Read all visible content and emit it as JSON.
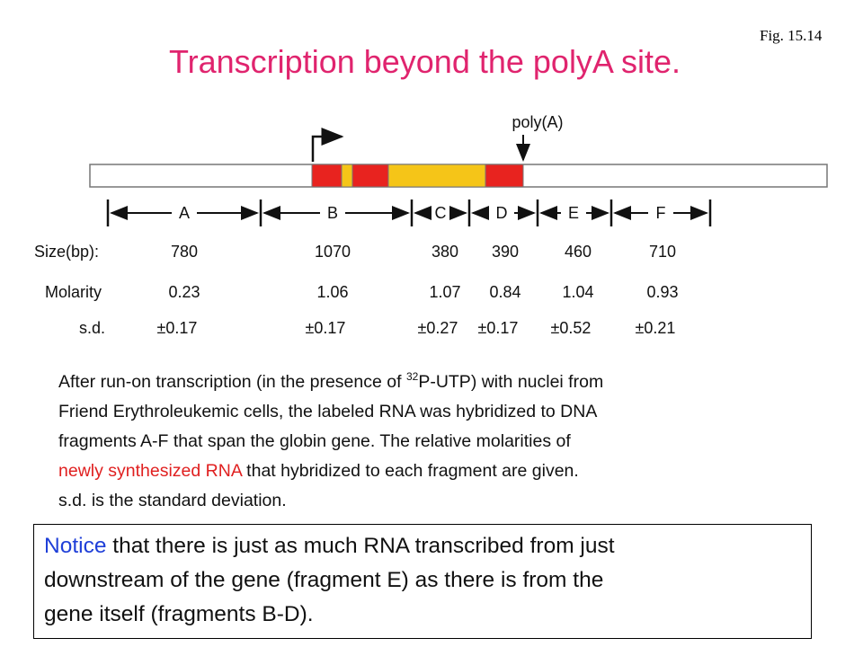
{
  "fig_label": "Fig. 15.14",
  "title": "Transcription beyond the polyA site.",
  "diagram": {
    "polya_label": "poly(A)",
    "fragments": [
      "A",
      "B",
      "C",
      "D",
      "E",
      "F"
    ],
    "row_labels": {
      "size": "Size(bp):",
      "molarity": "Molarity",
      "sd": "s.d."
    },
    "sizes": [
      780,
      1070,
      380,
      390,
      460,
      710
    ],
    "molarity": [
      0.23,
      1.06,
      1.07,
      0.84,
      1.04,
      0.93
    ],
    "sd": [
      "±0.17",
      "±0.17",
      "±0.27",
      "±0.17",
      "±0.52",
      "±0.21"
    ]
  },
  "paragraph": {
    "line1_before": "After run-on transcription (in the presence of ",
    "line1_sup": "32",
    "line1_after": "P-UTP) with nuclei from",
    "line2": "Friend Erythroleukemic cells, the labeled RNA was hybridized to DNA",
    "line3": "fragments A-F that span the globin gene. The relative molarities of",
    "line4_red": "newly synthesized RNA",
    "line4_after": " that hybridized to each fragment are given.",
    "line5": "s.d. is the standard deviation."
  },
  "note": {
    "highlight": "Notice",
    "line1_after": " that there is just as much RNA transcribed from just",
    "line2": "downstream of the gene (fragment E) as there is from the",
    "line3": "gene itself (fragments B-D)."
  }
}
